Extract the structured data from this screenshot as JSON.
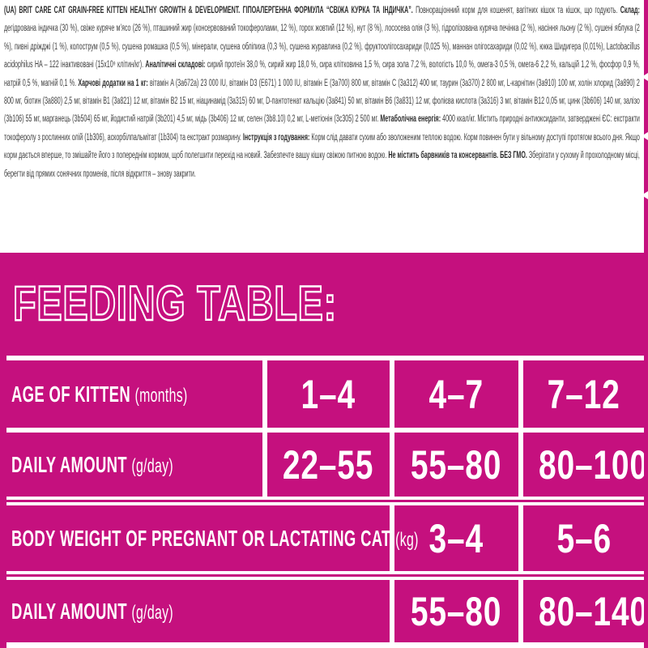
{
  "colors": {
    "brand_magenta": "#c5107e",
    "rule_white": "#ffffff",
    "fine_print_gray": "#3e3e3e"
  },
  "ingredients": {
    "segments": [
      {
        "bold": true,
        "text": "(UA) BRIT CARE CAT GRAIN-FREE KITTEN HEALTHY GROWTH & DEVELOPMENT. ГІПОАЛЕРГЕННА ФОРМУЛА “СВІЖА КУРКА ТА ІНДИЧКА”. "
      },
      {
        "bold": false,
        "text": "Повнораціонний корм для кошенят, вагітних кішок та кішок, що годують. "
      },
      {
        "bold": true,
        "text": "Склад: "
      },
      {
        "bold": false,
        "text": "дегідрована індичка (30 %), свіже куряче м’ясо (26 %), пташиний жир (консервований токоферолами, 12 %), горох жовтий (12 %), нут (8 %), лососева олія (3 %), гідролізована куряча печінка (2 %), насіння льону (2 %), сушені яблука (2 %), пивні дріжджі (1 %), колострум (0,5 %), сушена ромашка (0,5 %), мінерали, сушена обліпиха (0,3 %), сушена журавлина (0,2 %), фруктоолігосахариди (0,025 %), маннан олігосахариди (0,02 %), юкка Шидигера (0,01%), Lactobacillus acidophilus HA – 122 інактивовані (15x10⁹ клітин/кг). "
      },
      {
        "bold": true,
        "text": "Аналітичні складові: "
      },
      {
        "bold": false,
        "text": "сирий протеїн 38,0 %, сирий жир 18,0 %, сира клітковина 1,5 %, сира зола 7,2 %, вологість 10,0 %, омега-3 0,5 %, омега-6 2,2 %, кальцій 1,2 %, фосфор 0,9 %, натрій 0,5 %, магній 0,1 %. "
      },
      {
        "bold": true,
        "text": "Харчові додатки на 1 кг: "
      },
      {
        "bold": false,
        "text": "вітамін A (3a672a) 23 000 IU, вітамін D3 (E671) 1 000 IU, вітамін E (3a700) 800 мг, вітамін C (3a312) 400 мг, таурин (3a370) 2 800 мг, L-карнітин (3a910) 100 мг, холін хлорид (3a890) 2 800 мг, біотин (3a880) 2,5 мг, вітамін B1 (3a821) 12 мг, вітамін B2 15 мг, ніацинамід (3a315) 60 мг, D-пантотенат кальцію (3a841) 50 мг, вітамін B6 (3a831) 12 мг, фолієва кислота (3a316) 3 мг, вітамін B12 0,05 мг, цинк (3b606) 140 мг, залізо (3b106) 55 мг, марганець (3b504) 65 мг, йодистий натрій (3b201) 4,5 мг, мідь (3b406) 12 мг, селен (3b8.10) 0,2 мг, L-метіонін (3c305) 2 500 мг. "
      },
      {
        "bold": true,
        "text": "Метаболічна енергія: "
      },
      {
        "bold": false,
        "text": "4000 ккал/кг. Містить природні антиоксиданти, затверджені ЄС: екстракти токоферолу з рослинних олій (1b306), аскорбілпальмітат (1b304) та екстракт розмарину. "
      },
      {
        "bold": true,
        "text": "Інструкція з годування: "
      },
      {
        "bold": false,
        "text": "Корм слід давати сухим або зволоженим теплою водою. Корм повинен бути у вільному доступі протягом всього дня. Якщо корм дається вперше, то змішайте його з попереднім кормом, щоб полегшити перехід на новий. Забезпечте вашу кішку свіжою питною водою. "
      },
      {
        "bold": true,
        "text": "Не містить барвників та консервантів. БЕЗ ГМО. "
      },
      {
        "bold": false,
        "text": "Зберігати у сухому й прохолодному місці, берегти від прямих сонячних променів, після відкриття – знову закрити."
      }
    ]
  },
  "feeding_table": {
    "title": "FEEDING TABLE:",
    "kitten": {
      "age_row": {
        "label": "AGE OF KITTEN",
        "unit": "(months)",
        "values": [
          "1–4",
          "4–7",
          "7–12"
        ]
      },
      "amount_row": {
        "label": "DAILY AMOUNT",
        "unit": "(g/day)",
        "values": [
          "22–55",
          "55–80",
          "80–100"
        ]
      }
    },
    "adult": {
      "weight_row": {
        "label": "BODY WEIGHT OF PREGNANT OR LACTATING CAT",
        "unit": "(kg)",
        "values": [
          "3–4",
          "5–6"
        ]
      },
      "amount_row": {
        "label": "DAILY AMOUNT",
        "unit": "(g/day)",
        "values": [
          "55–80",
          "80–140"
        ]
      }
    }
  }
}
